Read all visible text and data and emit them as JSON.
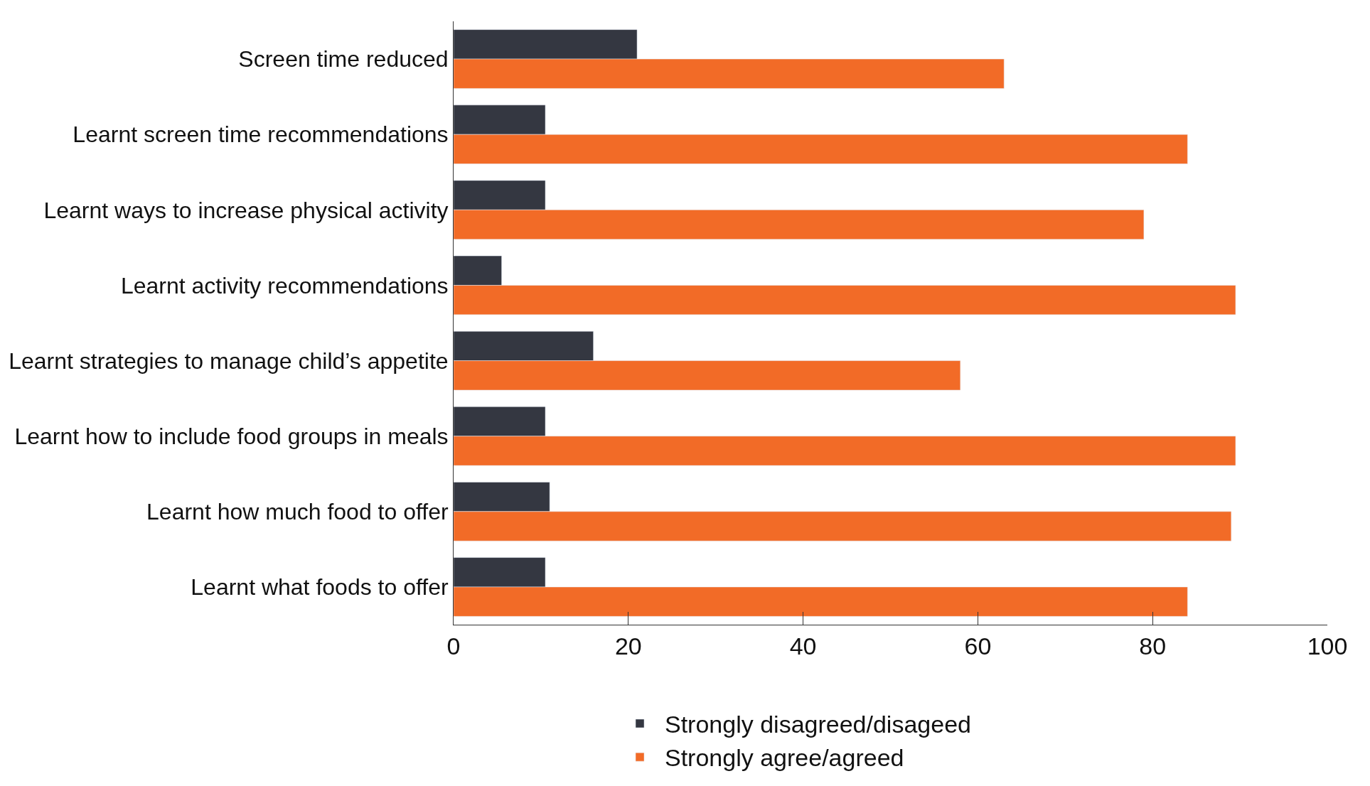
{
  "chart_data": {
    "type": "bar",
    "orientation": "horizontal",
    "categories": [
      "Screen time reduced",
      "Learnt screen time recommendations",
      "Learnt ways to increase physical activity",
      "Learnt activity recommendations",
      "Learnt strategies to manage child’s appetite",
      "Learnt how to include food groups in meals",
      "Learnt how much food to offer",
      "Learnt what foods to offer"
    ],
    "series": [
      {
        "name": "Strongly disagreed/disageed",
        "color": "#343741",
        "values": [
          21,
          10.5,
          10.5,
          5.5,
          16,
          10.5,
          11,
          10.5
        ]
      },
      {
        "name": "Strongly agree/agreed",
        "color": "#f26b27",
        "values": [
          63,
          84,
          79,
          89.5,
          58,
          89.5,
          89,
          84
        ]
      }
    ],
    "xlim": [
      0,
      100
    ],
    "xticks": [
      0,
      20,
      40,
      60,
      80,
      100
    ],
    "legend": "bottom"
  }
}
